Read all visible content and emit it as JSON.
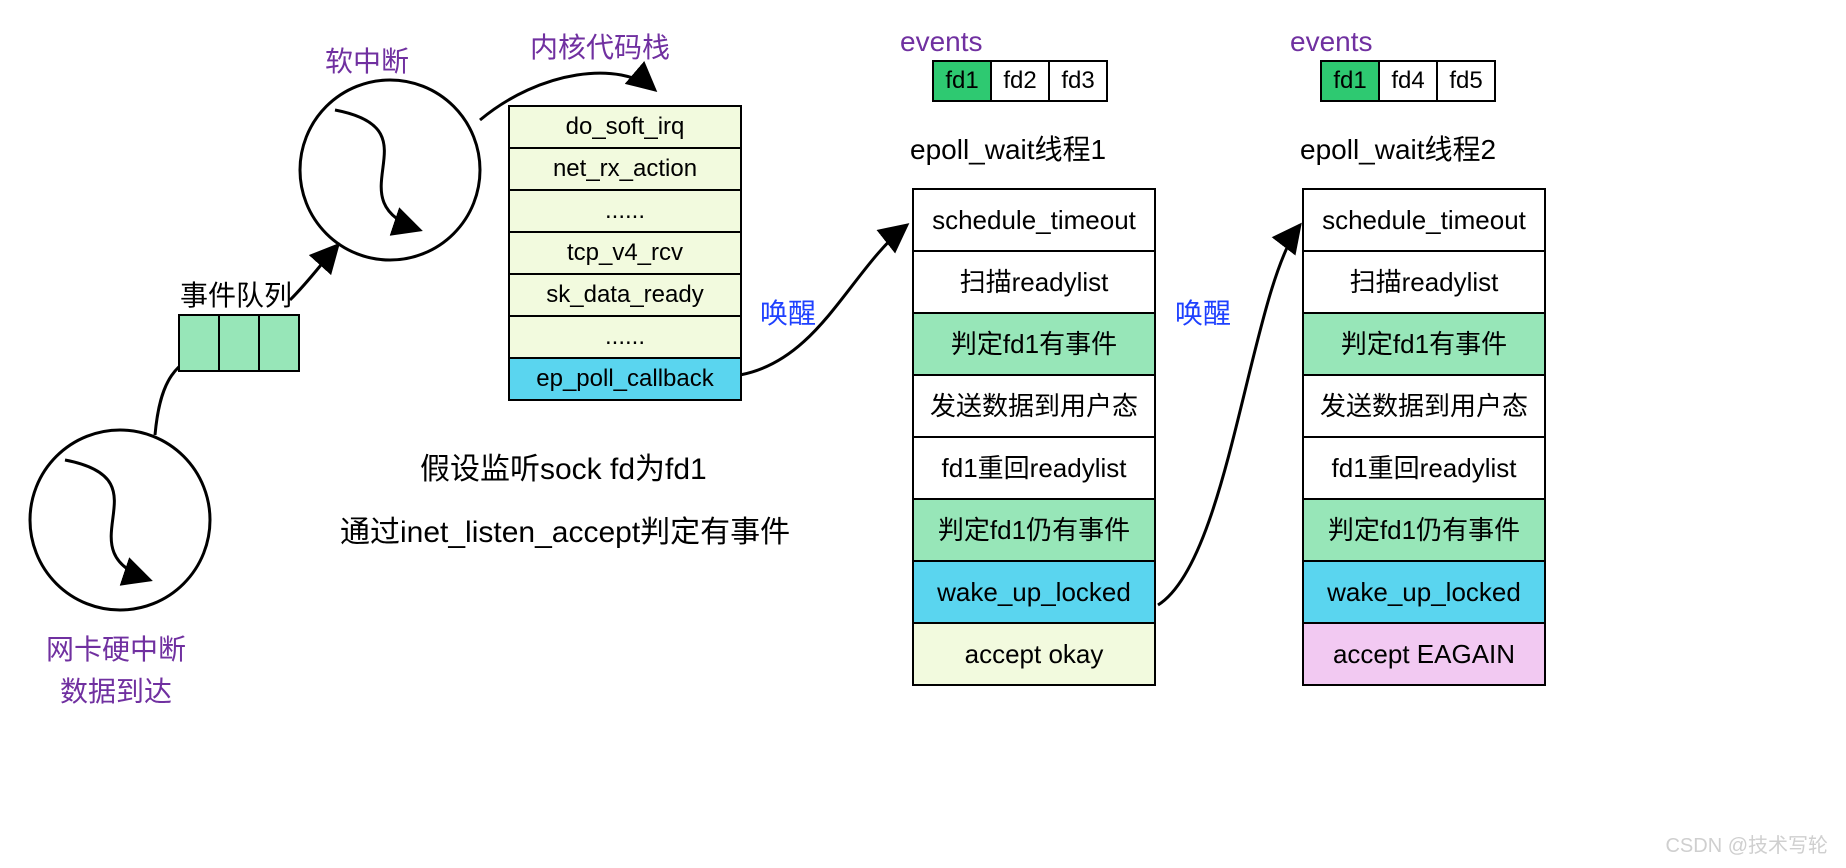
{
  "colors": {
    "purple": "#7030a0",
    "blue": "#1e40ff",
    "black": "#000000",
    "queue_green": "#97e6b8",
    "stack_pale": "#f2fade",
    "stack_cyan": "#5ad5ef",
    "thread_green": "#97e6b8",
    "thread_cyan": "#5ad5ef",
    "thread_yellow": "#f2fade",
    "thread_pink": "#f2c9f2",
    "fd_hl": "#2ec971",
    "white": "#ffffff"
  },
  "labels": {
    "softirq": "软中断",
    "kernel_stack": "内核代码栈",
    "event_queue": "事件队列",
    "nic_irq_line1": "网卡硬中断",
    "nic_irq_line2": "数据到达",
    "wake1": "唤醒",
    "wake2": "唤醒",
    "events1": "events",
    "events2": "events",
    "thread1_title": "epoll_wait线程1",
    "thread2_title": "epoll_wait线程2"
  },
  "kernel_stack": {
    "rows": [
      {
        "text": "do_soft_irq",
        "bg": "#f2fade"
      },
      {
        "text": "net_rx_action",
        "bg": "#f2fade"
      },
      {
        "text": "......",
        "bg": "#f2fade"
      },
      {
        "text": "tcp_v4_rcv",
        "bg": "#f2fade"
      },
      {
        "text": "sk_data_ready",
        "bg": "#f2fade"
      },
      {
        "text": "......",
        "bg": "#f2fade"
      },
      {
        "text": "ep_poll_callback",
        "bg": "#5ad5ef"
      }
    ]
  },
  "events1": [
    {
      "text": "fd1",
      "bg": "#2ec971"
    },
    {
      "text": "fd2",
      "bg": "#ffffff"
    },
    {
      "text": "fd3",
      "bg": "#ffffff"
    }
  ],
  "events2": [
    {
      "text": "fd1",
      "bg": "#2ec971"
    },
    {
      "text": "fd4",
      "bg": "#ffffff"
    },
    {
      "text": "fd5",
      "bg": "#ffffff"
    }
  ],
  "thread1": [
    {
      "text": "schedule_timeout",
      "bg": "#ffffff"
    },
    {
      "text": "扫描readylist",
      "bg": "#ffffff"
    },
    {
      "text": "判定fd1有事件",
      "bg": "#97e6b8"
    },
    {
      "text": "发送数据到用户态",
      "bg": "#ffffff"
    },
    {
      "text": "fd1重回readylist",
      "bg": "#ffffff"
    },
    {
      "text": "判定fd1仍有事件",
      "bg": "#97e6b8"
    },
    {
      "text": "wake_up_locked",
      "bg": "#5ad5ef"
    },
    {
      "text": "accept okay",
      "bg": "#f2fade"
    }
  ],
  "thread2": [
    {
      "text": "schedule_timeout",
      "bg": "#ffffff"
    },
    {
      "text": "扫描readylist",
      "bg": "#ffffff"
    },
    {
      "text": "判定fd1有事件",
      "bg": "#97e6b8"
    },
    {
      "text": "发送数据到用户态",
      "bg": "#ffffff"
    },
    {
      "text": "fd1重回readylist",
      "bg": "#ffffff"
    },
    {
      "text": "判定fd1仍有事件",
      "bg": "#97e6b8"
    },
    {
      "text": "wake_up_locked",
      "bg": "#5ad5ef"
    },
    {
      "text": "accept EAGAIN",
      "bg": "#f2c9f2"
    }
  ],
  "explain": {
    "line1": "假设监听sock fd为fd1",
    "line2": "通过inet_listen_accept判定有事件"
  },
  "watermark": "CSDN @技术写轮"
}
